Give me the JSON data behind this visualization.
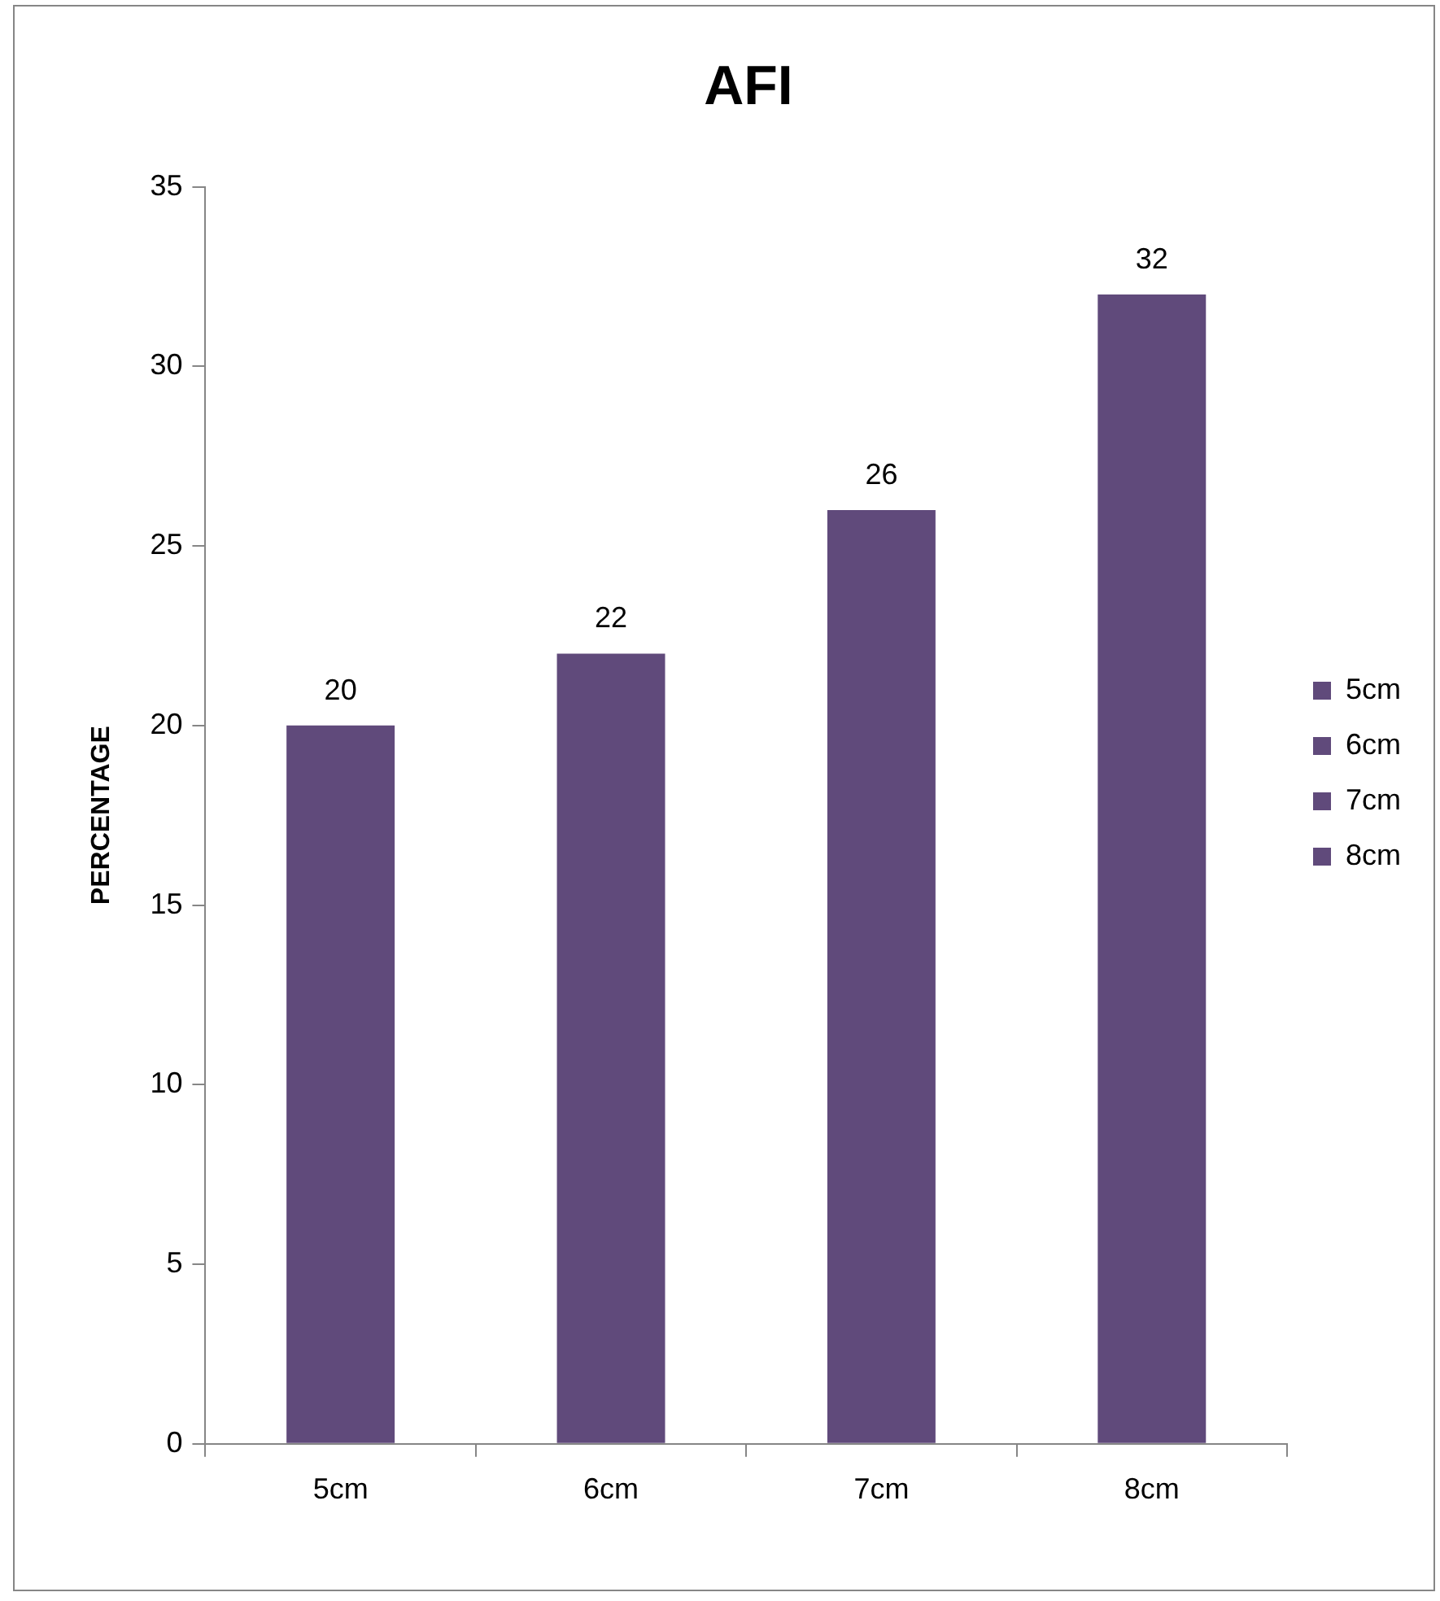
{
  "chart_data": {
    "type": "bar",
    "title": "AFI",
    "ylabel": "PERCENTAGE",
    "categories": [
      "5cm",
      "6cm",
      "7cm",
      "8cm"
    ],
    "series": [
      {
        "name": "5cm",
        "color": "#604a7b",
        "values": [
          20,
          null,
          null,
          null
        ]
      },
      {
        "name": "6cm",
        "color": "#604a7b",
        "values": [
          null,
          22,
          null,
          null
        ]
      },
      {
        "name": "7cm",
        "color": "#604a7b",
        "values": [
          null,
          null,
          26,
          null
        ]
      },
      {
        "name": "8cm",
        "color": "#604a7b",
        "values": [
          null,
          null,
          null,
          32
        ]
      }
    ],
    "ylim": [
      0,
      35
    ],
    "yticks": [
      0,
      5,
      10,
      15,
      20,
      25,
      30,
      35
    ],
    "grid": false,
    "legend": "right",
    "data_labels": true
  }
}
